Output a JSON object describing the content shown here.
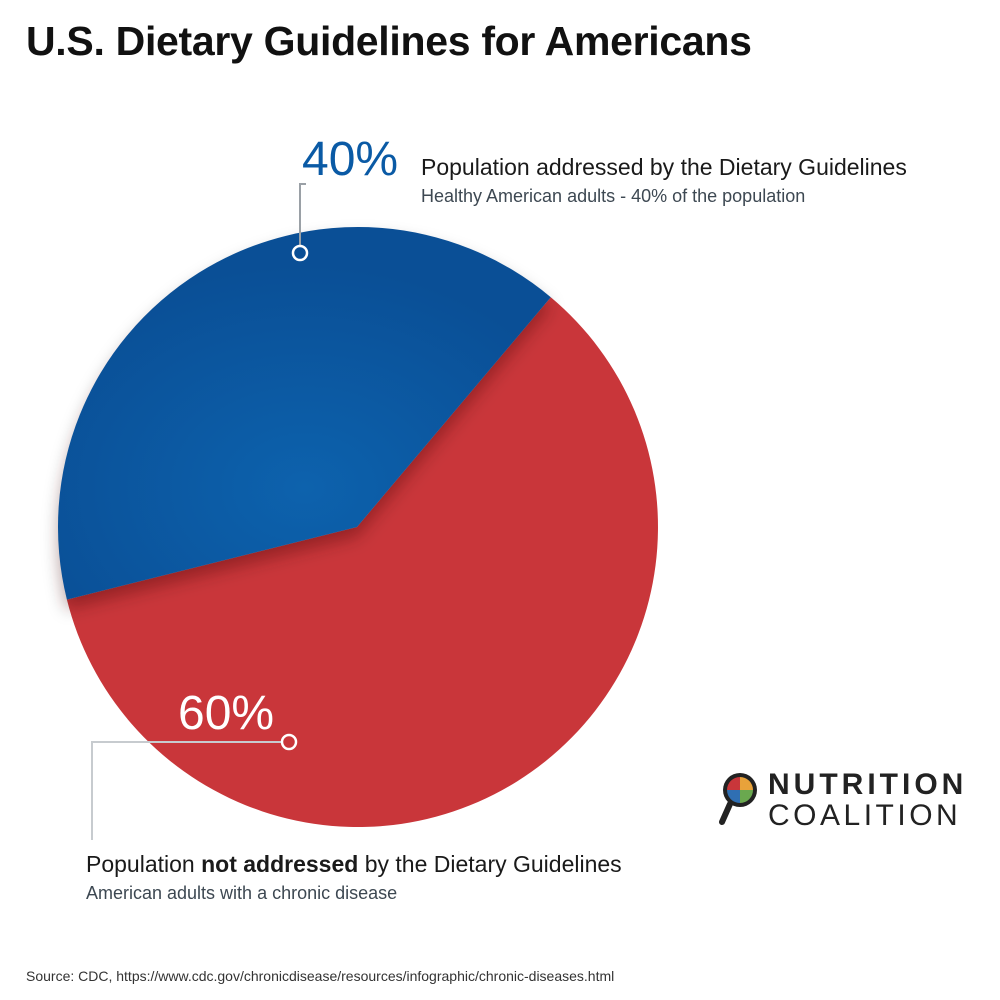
{
  "title": "U.S. Dietary Guidelines for Americans",
  "colors": {
    "blue": "#0b5fa8",
    "red": "#c9363a"
  },
  "chart_data": {
    "type": "pie",
    "title": "U.S. Dietary Guidelines for Americans",
    "slices": [
      {
        "value": 40,
        "percent_label": "40%",
        "label": "Population addressed by the Dietary Guidelines",
        "sublabel": "Healthy American adults - 40% of  the population",
        "color": "#0b5fa8"
      },
      {
        "value": 60,
        "percent_label": "60%",
        "label_prefix": "Population ",
        "label_bold": "not addressed",
        "label_suffix": " by the Dietary Guidelines",
        "sublabel": "American adults with a chronic disease",
        "color": "#c9363a"
      }
    ]
  },
  "source": "Source: CDC, https://www.cdc.gov/chronicdisease/resources/infographic/chronic-diseases.html",
  "logo": {
    "line1": "NUTRITION",
    "line2": "COALITION",
    "icon": "magnifier-plate-icon"
  }
}
